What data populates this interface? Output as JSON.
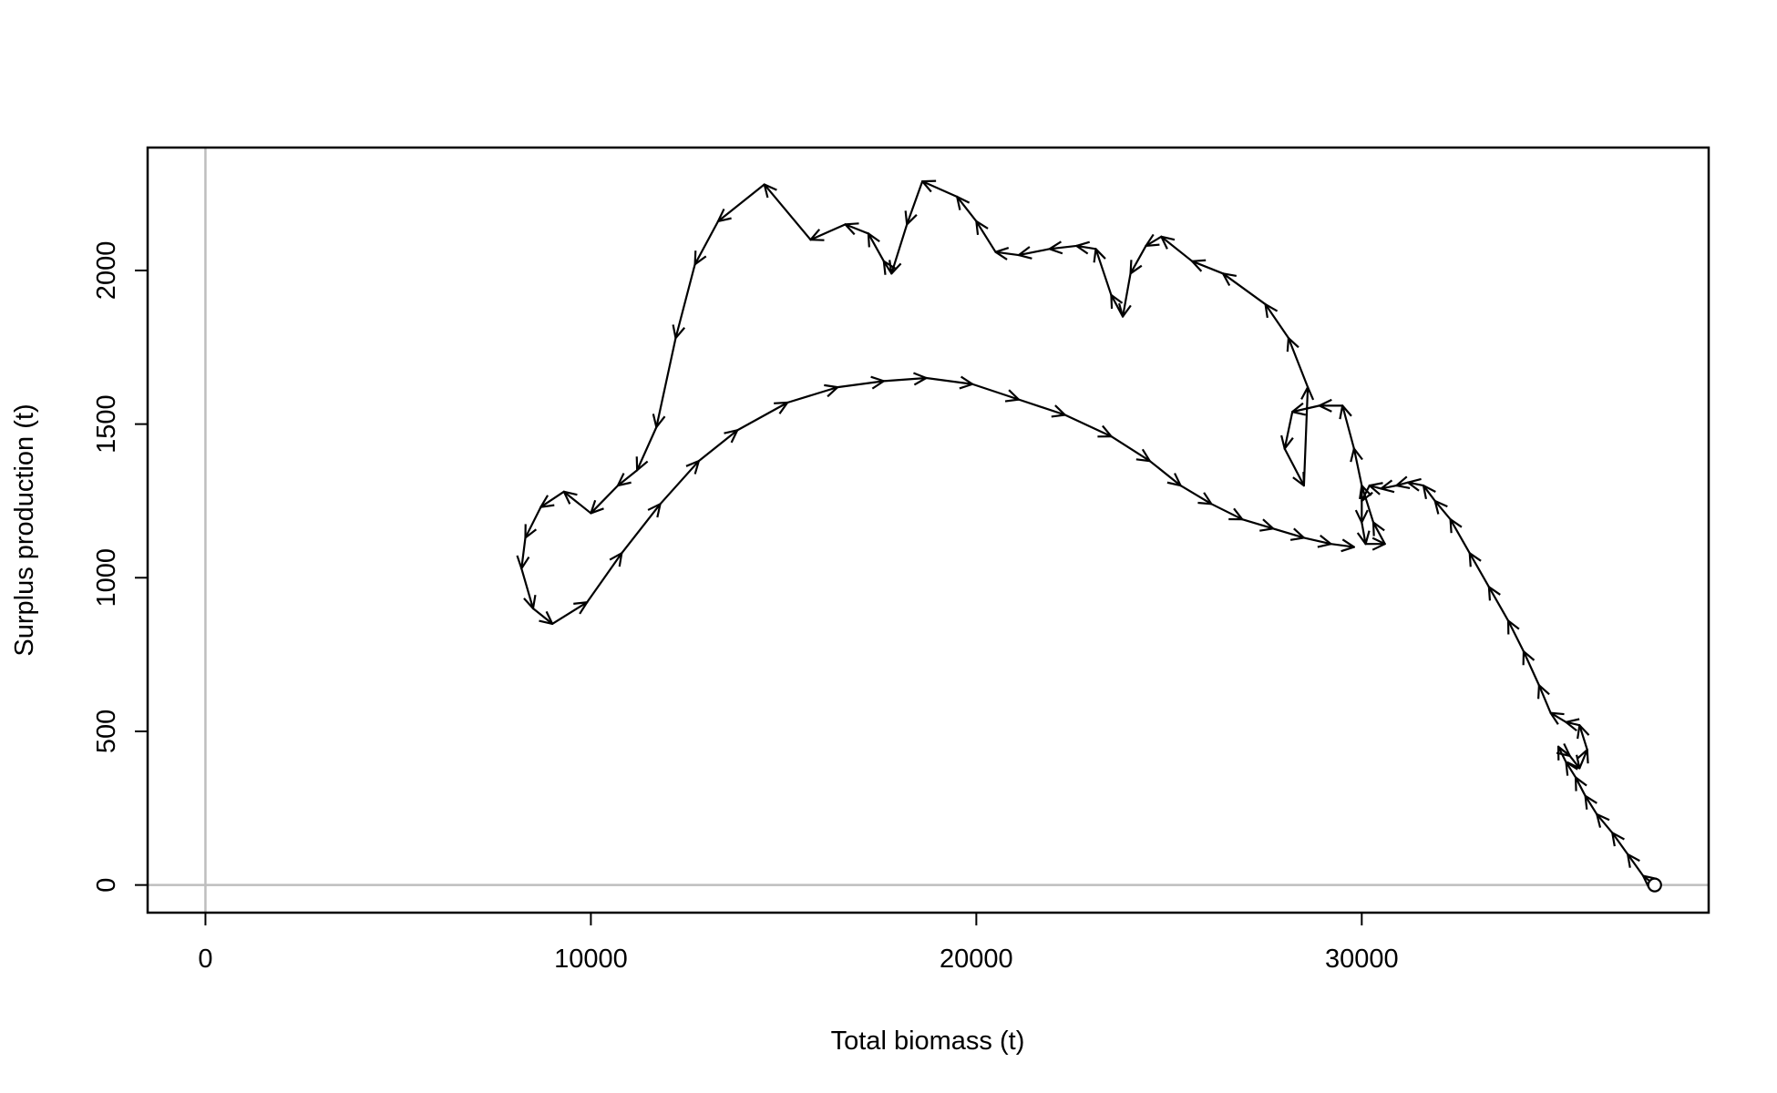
{
  "chart_data": {
    "type": "line",
    "title": "",
    "xlabel": "Total biomass (t)",
    "ylabel": "Surplus production (t)",
    "xlim": [
      -1500,
      39000
    ],
    "ylim": [
      -90,
      2400
    ],
    "xticks": [
      0,
      10000,
      20000,
      30000
    ],
    "yticks": [
      0,
      500,
      1000,
      1500,
      2000
    ],
    "reference_lines": {
      "x": 0,
      "y": 0,
      "color": "#bebebe"
    },
    "line_color": "#000000",
    "arrows": true,
    "endpoint_marker": {
      "x": 37600,
      "y": 0,
      "shape": "open-circle"
    },
    "series": [
      {
        "values": [
          [
            37600,
            0
          ],
          [
            37300,
            30
          ],
          [
            36900,
            100
          ],
          [
            36500,
            170
          ],
          [
            36100,
            230
          ],
          [
            35800,
            290
          ],
          [
            35550,
            350
          ],
          [
            35300,
            400
          ],
          [
            35100,
            450
          ],
          [
            35400,
            420
          ],
          [
            35650,
            380
          ],
          [
            35850,
            440
          ],
          [
            35650,
            520
          ],
          [
            35300,
            530
          ],
          [
            34900,
            560
          ],
          [
            34600,
            650
          ],
          [
            34200,
            760
          ],
          [
            33800,
            860
          ],
          [
            33300,
            970
          ],
          [
            32800,
            1080
          ],
          [
            32300,
            1190
          ],
          [
            31900,
            1250
          ],
          [
            31600,
            1300
          ],
          [
            31200,
            1310
          ],
          [
            30900,
            1300
          ],
          [
            30500,
            1290
          ],
          [
            30200,
            1300
          ],
          [
            30000,
            1250
          ],
          [
            30000,
            1180
          ],
          [
            30100,
            1110
          ],
          [
            30600,
            1110
          ],
          [
            30300,
            1180
          ],
          [
            30000,
            1300
          ],
          [
            29800,
            1420
          ],
          [
            29500,
            1560
          ],
          [
            28900,
            1560
          ],
          [
            28200,
            1540
          ],
          [
            28000,
            1420
          ],
          [
            28500,
            1300
          ],
          [
            28600,
            1620
          ],
          [
            28100,
            1780
          ],
          [
            27500,
            1890
          ],
          [
            26400,
            1990
          ],
          [
            25600,
            2030
          ],
          [
            24800,
            2110
          ],
          [
            24400,
            2080
          ],
          [
            24000,
            1990
          ],
          [
            23800,
            1850
          ],
          [
            23500,
            1920
          ],
          [
            23100,
            2070
          ],
          [
            22600,
            2080
          ],
          [
            21900,
            2070
          ],
          [
            21100,
            2050
          ],
          [
            20500,
            2060
          ],
          [
            20000,
            2160
          ],
          [
            19500,
            2240
          ],
          [
            18600,
            2290
          ],
          [
            18200,
            2150
          ],
          [
            17800,
            1990
          ],
          [
            17600,
            2030
          ],
          [
            17200,
            2120
          ],
          [
            16600,
            2150
          ],
          [
            15700,
            2100
          ],
          [
            14500,
            2280
          ],
          [
            13300,
            2160
          ],
          [
            12700,
            2020
          ],
          [
            12200,
            1780
          ],
          [
            11700,
            1490
          ],
          [
            11200,
            1350
          ],
          [
            10700,
            1300
          ],
          [
            10000,
            1210
          ],
          [
            9300,
            1280
          ],
          [
            8700,
            1230
          ],
          [
            8300,
            1130
          ],
          [
            8200,
            1030
          ],
          [
            8500,
            900
          ],
          [
            9000,
            850
          ],
          [
            9900,
            920
          ],
          [
            10800,
            1080
          ],
          [
            11800,
            1240
          ],
          [
            12800,
            1380
          ],
          [
            13800,
            1480
          ],
          [
            15100,
            1570
          ],
          [
            16400,
            1620
          ],
          [
            17600,
            1640
          ],
          [
            18700,
            1650
          ],
          [
            19900,
            1630
          ],
          [
            21100,
            1580
          ],
          [
            22300,
            1530
          ],
          [
            23500,
            1460
          ],
          [
            24500,
            1380
          ],
          [
            25300,
            1300
          ],
          [
            26100,
            1240
          ],
          [
            26900,
            1190
          ],
          [
            27700,
            1160
          ],
          [
            28500,
            1130
          ],
          [
            29200,
            1110
          ],
          [
            29800,
            1100
          ]
        ]
      }
    ]
  }
}
